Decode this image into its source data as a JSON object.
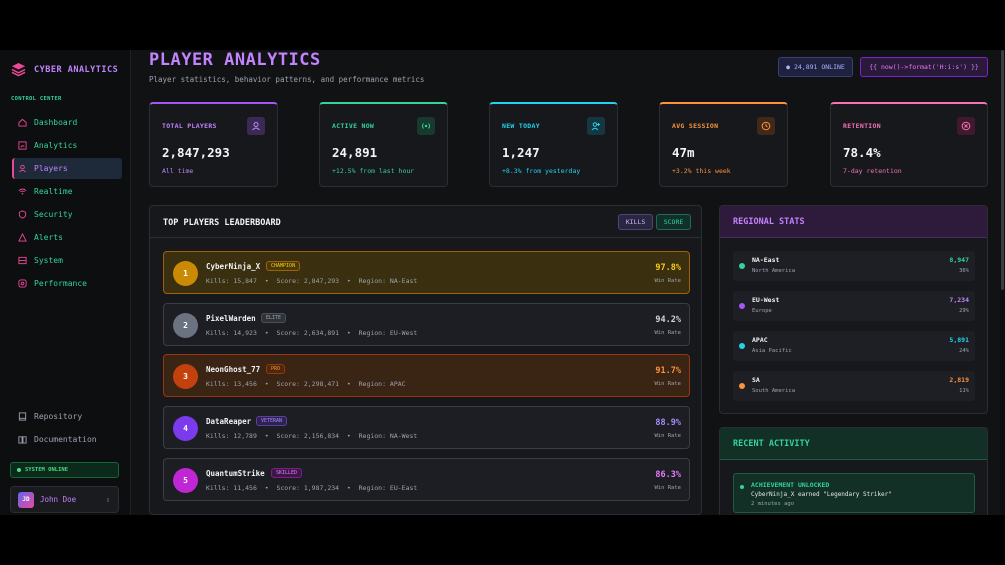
{
  "brand": {
    "name": "CYBER ANALYTICS"
  },
  "sidebar": {
    "section_label": "CONTROL CENTER",
    "items": [
      {
        "label": "Dashboard",
        "icon": "home-icon"
      },
      {
        "label": "Analytics",
        "icon": "chart-icon"
      },
      {
        "label": "Players",
        "icon": "users-icon",
        "active": true
      },
      {
        "label": "Realtime",
        "icon": "wifi-icon"
      },
      {
        "label": "Security",
        "icon": "shield-icon"
      },
      {
        "label": "Alerts",
        "icon": "alert-icon"
      },
      {
        "label": "System",
        "icon": "server-icon"
      },
      {
        "label": "Performance",
        "icon": "gauge-icon"
      }
    ],
    "bottom_items": [
      {
        "label": "Repository",
        "icon": "repo-icon"
      },
      {
        "label": "Documentation",
        "icon": "book-icon"
      }
    ],
    "status": "SYSTEM ONLINE",
    "user": {
      "initials": "JD",
      "name": "John Doe"
    }
  },
  "header": {
    "title": "PLAYER ANALYTICS",
    "subtitle": "Player statistics, behavior patterns, and performance metrics",
    "online": "● 24,891 ONLINE",
    "time": "{{ now()->format('H:i:s') }}"
  },
  "stats": [
    {
      "label": "TOTAL PLAYERS",
      "value": "2,847,293",
      "note": "All time",
      "color": "#a855f7",
      "icon": "users-icon"
    },
    {
      "label": "ACTIVE NOW",
      "value": "24,891",
      "note": "+12.5% from last hour",
      "color": "#34d399",
      "icon": "broadcast-icon"
    },
    {
      "label": "NEW TODAY",
      "value": "1,247",
      "note": "+8.3% from yesterday",
      "color": "#22d3ee",
      "icon": "user-plus-icon"
    },
    {
      "label": "AVG SESSION",
      "value": "47m",
      "note": "+3.2% this week",
      "color": "#fb923c",
      "icon": "clock-icon"
    },
    {
      "label": "RETENTION",
      "value": "78.4%",
      "note": "7-day retention",
      "color": "#f472b6",
      "icon": "target-icon"
    }
  ],
  "leaderboard": {
    "title": "TOP PLAYERS LEADERBOARD",
    "kills_label": "KILLS",
    "score_label": "SCORE",
    "win_label": "Win Rate",
    "players": [
      {
        "rank": "1",
        "name": "CyberNinja_X",
        "badge": "CHAMPION",
        "meta": "Kills: 15,847  •  Score: 2,847,293  •  Region: NA-East",
        "winrate": "97.8%"
      },
      {
        "rank": "2",
        "name": "PixelWarden",
        "badge": "ELITE",
        "meta": "Kills: 14,923  •  Score: 2,634,891  •  Region: EU-West",
        "winrate": "94.2%"
      },
      {
        "rank": "3",
        "name": "NeonGhost_77",
        "badge": "PRO",
        "meta": "Kills: 13,456  •  Score: 2,298,471  •  Region: APAC",
        "winrate": "91.7%"
      },
      {
        "rank": "4",
        "name": "DataReaper",
        "badge": "VETERAN",
        "meta": "Kills: 12,789  •  Score: 2,156,834  •  Region: NA-West",
        "winrate": "88.9%"
      },
      {
        "rank": "5",
        "name": "QuantumStrike",
        "badge": "SKILLED",
        "meta": "Kills: 11,456  •  Score: 1,987,234  •  Region: EU-East",
        "winrate": "86.3%"
      }
    ]
  },
  "regional": {
    "title": "REGIONAL STATS",
    "regions": [
      {
        "name": "NA-East",
        "sub": "North America",
        "count": "8,947",
        "pct": "36%",
        "color": "#34d399"
      },
      {
        "name": "EU-West",
        "sub": "Europe",
        "count": "7,234",
        "pct": "29%",
        "color": "#a855f7"
      },
      {
        "name": "APAC",
        "sub": "Asia Pacific",
        "count": "5,891",
        "pct": "24%",
        "color": "#22d3ee"
      },
      {
        "name": "SA",
        "sub": "South America",
        "count": "2,819",
        "pct": "11%",
        "color": "#fb923c"
      }
    ]
  },
  "activity": {
    "title": "RECENT ACTIVITY",
    "item": {
      "title": "ACHIEVEMENT UNLOCKED",
      "text": "CyberNinja_X earned \"Legendary Striker\"",
      "time": "2 minutes ago"
    }
  }
}
